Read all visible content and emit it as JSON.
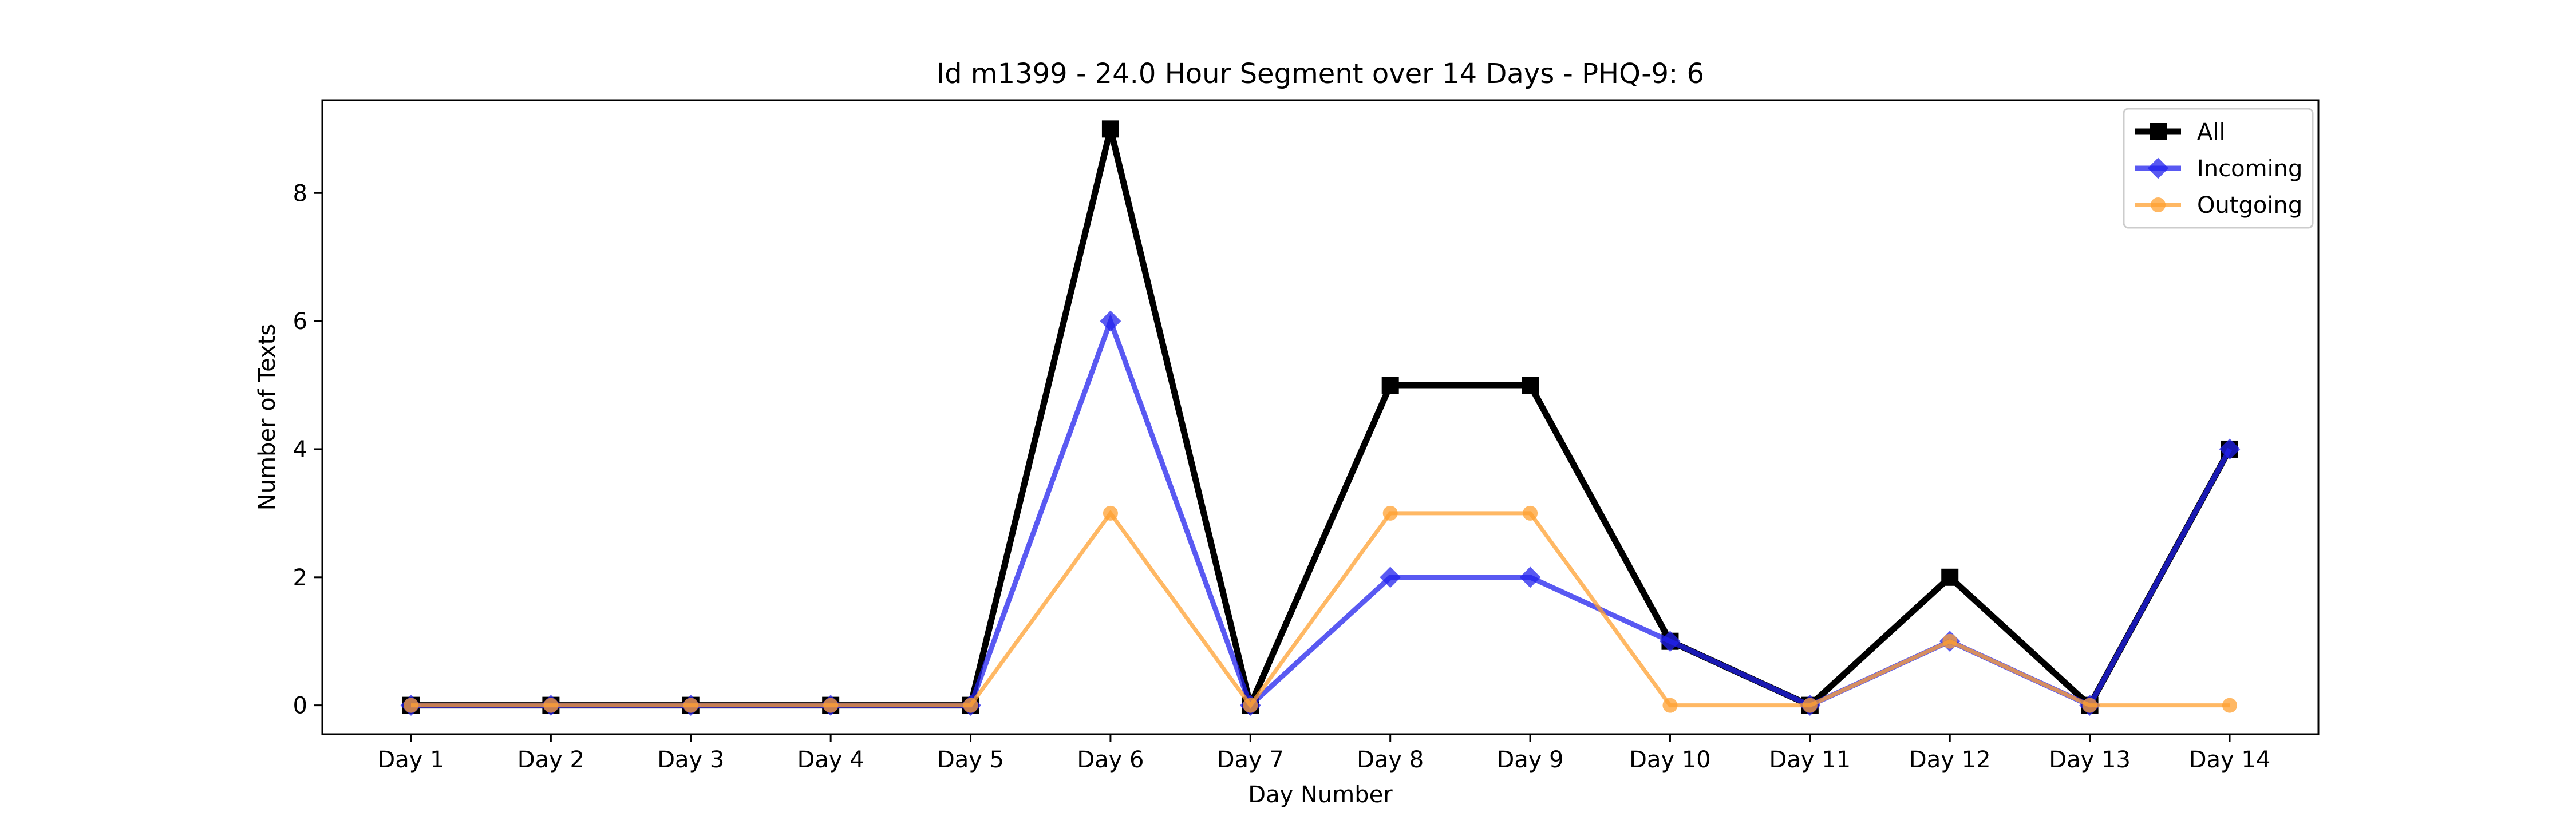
{
  "chart_data": {
    "type": "line",
    "title": "Id m1399 - 24.0 Hour Segment over 14 Days - PHQ-9: 6",
    "xlabel": "Day Number",
    "ylabel": "Number of Texts",
    "categories": [
      "Day 1",
      "Day 2",
      "Day 3",
      "Day 4",
      "Day 5",
      "Day 6",
      "Day 7",
      "Day 8",
      "Day 9",
      "Day 10",
      "Day 11",
      "Day 12",
      "Day 13",
      "Day 14"
    ],
    "yticks": [
      0,
      2,
      4,
      6,
      8
    ],
    "ylim": [
      -0.45,
      9.45
    ],
    "grid": false,
    "legend_position": "top-right",
    "series": [
      {
        "name": "All",
        "color": "#000000",
        "marker": "square",
        "values": [
          0,
          0,
          0,
          0,
          0,
          9,
          0,
          5,
          5,
          1,
          0,
          2,
          0,
          4
        ]
      },
      {
        "name": "Incoming",
        "color": "#2222ee",
        "marker": "diamond",
        "values": [
          0,
          0,
          0,
          0,
          0,
          6,
          0,
          2,
          2,
          1,
          0,
          1,
          0,
          4
        ]
      },
      {
        "name": "Outgoing",
        "color": "#ffa030",
        "marker": "circle",
        "values": [
          0,
          0,
          0,
          0,
          0,
          3,
          0,
          3,
          3,
          0,
          0,
          1,
          0,
          0
        ]
      }
    ]
  }
}
